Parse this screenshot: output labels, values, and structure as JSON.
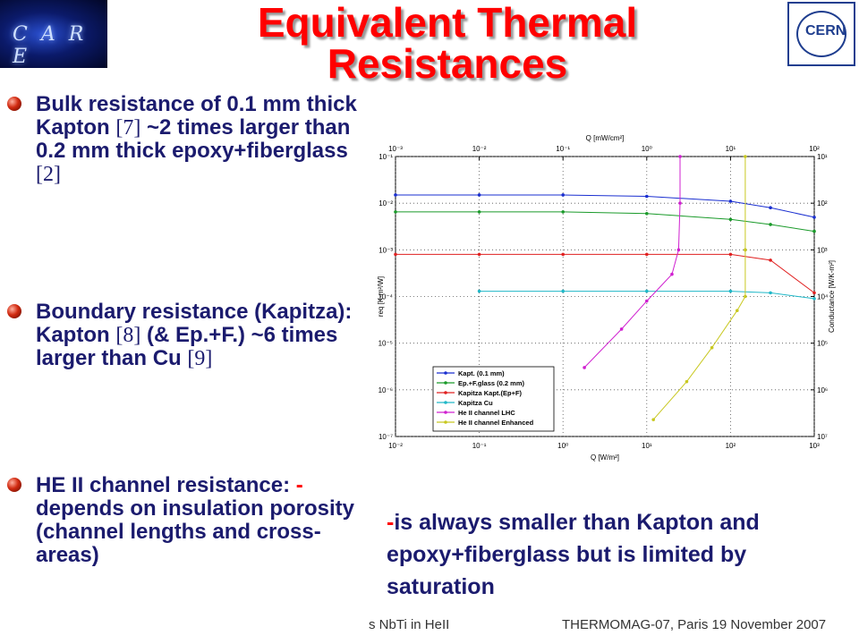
{
  "header": {
    "title": "Equivalent Thermal Resistances",
    "logo_left": "C A R E",
    "logo_right": "CERN"
  },
  "bullets": [
    {
      "segments": [
        "Bulk resistance of 0.1 mm thick Kapton ",
        "[7]",
        " ~2 times larger than 0.2 mm thick epoxy+fiberglass ",
        "[2]"
      ]
    },
    {
      "segments": [
        "Boundary resistance (Kapitza): Kapton ",
        "[8]",
        " (& Ep.+F.) ~6 times larger than Cu ",
        "[9]"
      ]
    },
    {
      "segments": [
        "HE II channel resistance: ",
        "-",
        "depends on insulation porosity (channel lengths and cross-areas)"
      ]
    }
  ],
  "note": {
    "segments": [
      "-",
      "is always smaller than Kapton and epoxy+fiberglass but is limited by saturation"
    ]
  },
  "footer": {
    "left": "s NbTi in HeII",
    "right": "THERMOMAG-07, Paris 19 November 2007"
  },
  "chart_data": {
    "type": "line",
    "log_scale": true,
    "grid": true,
    "legend": "lower left",
    "xlabel": "Q [W/m²]",
    "x2label": "Q [mW/cm²]",
    "ylabel": "req [K-m²/W]",
    "y2label": "Conductance [W/K-m²]",
    "xlim": [
      0.01,
      1000
    ],
    "x2lim": [
      0.001,
      100
    ],
    "ylim": [
      1e-07,
      0.1
    ],
    "y2lim": [
      10000000,
      10
    ],
    "xticks": [
      {
        "value": 0.01,
        "label": "10⁻²"
      },
      {
        "value": 0.1,
        "label": "10⁻¹"
      },
      {
        "value": 1,
        "label": "10⁰"
      },
      {
        "value": 10,
        "label": "10¹"
      },
      {
        "value": 100,
        "label": "10²"
      },
      {
        "value": 1000,
        "label": "10³"
      }
    ],
    "x2ticks": [
      {
        "value": 0.001,
        "label": "10⁻³"
      },
      {
        "value": 0.01,
        "label": "10⁻²"
      },
      {
        "value": 0.1,
        "label": "10⁻¹"
      },
      {
        "value": 1,
        "label": "10⁰"
      },
      {
        "value": 10,
        "label": "10¹"
      },
      {
        "value": 100,
        "label": "10²"
      }
    ],
    "yticks": [
      {
        "value": 1e-07,
        "label": "10⁻⁷"
      },
      {
        "value": 1e-06,
        "label": "10⁻⁶"
      },
      {
        "value": 1e-05,
        "label": "10⁻⁵"
      },
      {
        "value": 0.0001,
        "label": "10⁻⁴"
      },
      {
        "value": 0.001,
        "label": "10⁻³"
      },
      {
        "value": 0.01,
        "label": "10⁻²"
      },
      {
        "value": 0.1,
        "label": "10⁻¹"
      }
    ],
    "y2ticks": [
      {
        "value": 10000000,
        "label": "10⁷"
      },
      {
        "value": 1000000,
        "label": "10⁶"
      },
      {
        "value": 100000,
        "label": "10⁵"
      },
      {
        "value": 10000,
        "label": "10⁴"
      },
      {
        "value": 1000,
        "label": "10³"
      },
      {
        "value": 100,
        "label": "10²"
      },
      {
        "value": 10,
        "label": "10¹"
      }
    ],
    "series": [
      {
        "name": "Kapt. (0.1 mm)",
        "color": "#1a2fd0",
        "x": [
          0.01,
          0.1,
          1,
          10,
          100,
          300,
          1000
        ],
        "values": [
          0.015,
          0.015,
          0.015,
          0.014,
          0.011,
          0.008,
          0.005
        ]
      },
      {
        "name": "Ep.+F.glass (0.2 mm)",
        "color": "#1a9a2a",
        "x": [
          0.01,
          0.1,
          1,
          10,
          100,
          300,
          1000
        ],
        "values": [
          0.0065,
          0.0065,
          0.0065,
          0.006,
          0.0045,
          0.0035,
          0.0025
        ]
      },
      {
        "name": "Kapitza Kapt.(Ep+F)",
        "color": "#e02020",
        "x": [
          0.01,
          0.1,
          1,
          10,
          100,
          300,
          1000
        ],
        "values": [
          0.0008,
          0.0008,
          0.0008,
          0.0008,
          0.0008,
          0.0006,
          0.00012
        ]
      },
      {
        "name": "Kapitza Cu",
        "color": "#20b8c8",
        "x": [
          0.1,
          1,
          10,
          100,
          300,
          1000
        ],
        "values": [
          0.00013,
          0.00013,
          0.00013,
          0.00013,
          0.00012,
          9e-05
        ]
      },
      {
        "name": "He II channel LHC",
        "color": "#d020d0",
        "x": [
          1.8,
          5,
          10,
          20,
          24,
          25,
          25
        ],
        "values": [
          3e-06,
          2e-05,
          8e-05,
          0.0003,
          0.001,
          0.01,
          0.1
        ]
      },
      {
        "name": "He II channel Enhanced",
        "color": "#c8c820",
        "x": [
          12,
          30,
          60,
          120,
          150,
          150,
          150
        ],
        "values": [
          2.3e-07,
          1.5e-06,
          8e-06,
          5e-05,
          0.0001,
          0.001,
          0.1
        ]
      }
    ]
  }
}
